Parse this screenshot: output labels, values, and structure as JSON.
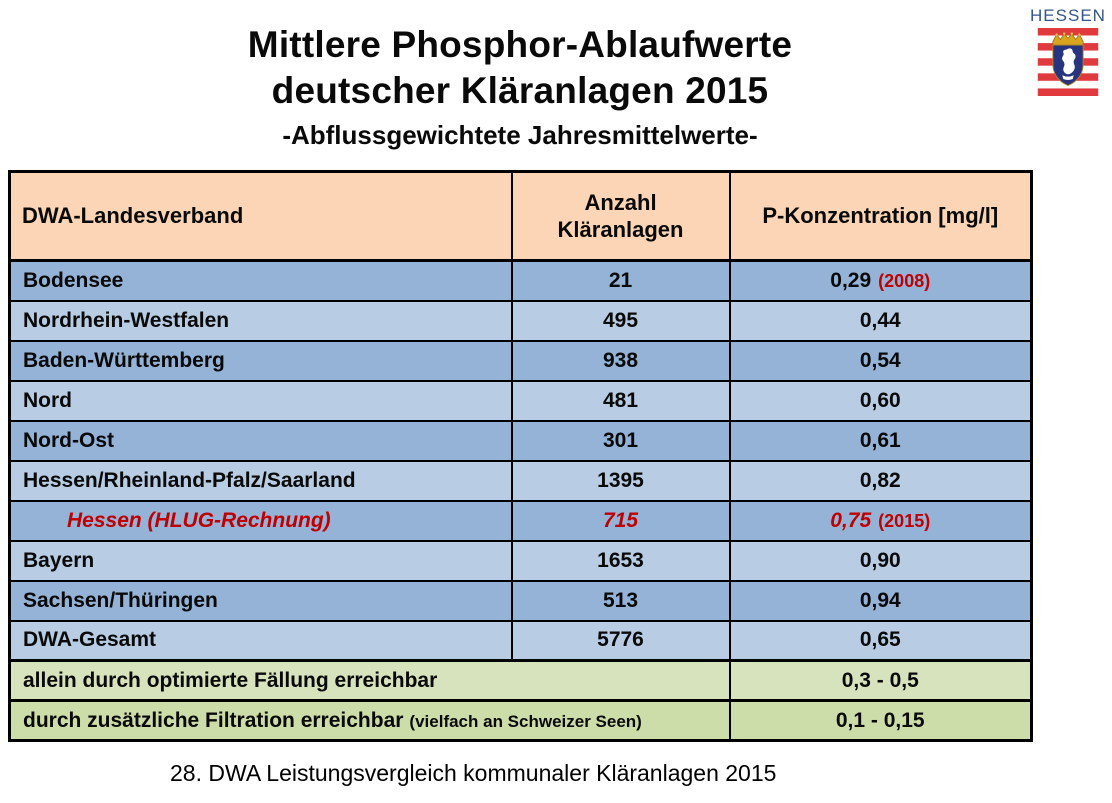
{
  "title": {
    "line1": "Mittlere Phosphor-Ablaufwerte",
    "line2": "deutscher Kläranlagen 2015",
    "subtitle": "-Abflussgewichtete Jahresmittelwerte-"
  },
  "logo": {
    "label": "HESSEN",
    "crest": "hessen-coat-of-arms"
  },
  "colors": {
    "header_bg": "#FBD5B5",
    "row_dark": "#95B3D7",
    "row_light": "#B8CCE4",
    "summary_green_1": "#D6E3BC",
    "summary_green_2": "#CDDDA9",
    "accent_red": "#C00000",
    "logo_blue": "#33558C",
    "border": "#000000"
  },
  "table": {
    "headers": [
      "DWA-Landesverband",
      "Anzahl\nKläranlagen",
      "P-Konzentration [mg/l]"
    ],
    "rows": [
      {
        "name": "Bodensee",
        "count": "21",
        "value": "0,29",
        "value_note": "(2008)",
        "shade": "dark",
        "highlight": false
      },
      {
        "name": "Nordrhein-Westfalen",
        "count": "495",
        "value": "0,44",
        "value_note": "",
        "shade": "light",
        "highlight": false
      },
      {
        "name": "Baden-Württemberg",
        "count": "938",
        "value": "0,54",
        "value_note": "",
        "shade": "dark",
        "highlight": false
      },
      {
        "name": "Nord",
        "count": "481",
        "value": "0,60",
        "value_note": "",
        "shade": "light",
        "highlight": false
      },
      {
        "name": "Nord-Ost",
        "count": "301",
        "value": "0,61",
        "value_note": "",
        "shade": "dark",
        "highlight": false
      },
      {
        "name": "Hessen/Rheinland-Pfalz/Saarland",
        "count": "1395",
        "value": "0,82",
        "value_note": "",
        "shade": "light",
        "highlight": false
      },
      {
        "name": "Hessen (HLUG-Rechnung)",
        "count": "715",
        "value": "0,75",
        "value_note": "(2015)",
        "shade": "dark",
        "highlight": true
      },
      {
        "name": "Bayern",
        "count": "1653",
        "value": "0,90",
        "value_note": "",
        "shade": "light",
        "highlight": false
      },
      {
        "name": "Sachsen/Thüringen",
        "count": "513",
        "value": "0,94",
        "value_note": "",
        "shade": "dark",
        "highlight": false
      },
      {
        "name": "DWA-Gesamt",
        "count": "5776",
        "value": "0,65",
        "value_note": "",
        "shade": "light",
        "highlight": false
      }
    ],
    "summary_rows": [
      {
        "label": "allein durch optimierte Fällung erreichbar",
        "label_note": "",
        "value": "0,3 - 0,5",
        "tone": "green1"
      },
      {
        "label": "durch zusätzliche Filtration erreichbar",
        "label_note": "(vielfach an Schweizer Seen)",
        "value": "0,1 - 0,15",
        "tone": "green2"
      }
    ]
  },
  "caption": "28. DWA Leistungsvergleich kommunaler Kläranlagen 2015"
}
